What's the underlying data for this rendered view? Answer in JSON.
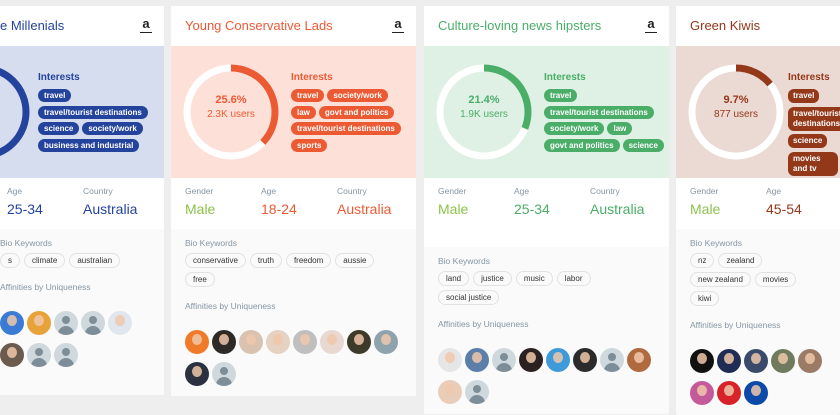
{
  "labels": {
    "interests": "Interests",
    "gender": "Gender",
    "age": "Age",
    "country": "Country",
    "bio_keywords": "Bio Keywords",
    "affinities": "Affinities by Uniqueness"
  },
  "cards": [
    {
      "title": "e Millenials",
      "accent": "#24439c",
      "panel": "#d6ddef",
      "percent": null,
      "users": "",
      "gender": "",
      "age": "25-34",
      "country": "Australia",
      "interests": [
        "travel",
        "travel/tourist destinations",
        "science",
        "society/work",
        "business and industrial"
      ],
      "keywords": [
        "s",
        "climate",
        "australian"
      ],
      "avatars": [
        "#3a7bd5",
        "#e8a23a",
        "ph",
        "ph",
        "#dfe6ee",
        "#6b5a4e",
        "ph",
        "ph"
      ]
    },
    {
      "title": "Young Conservative Lads",
      "accent": "#ec5a34",
      "panel": "#fde0d8",
      "percent": 25.6,
      "percent_label": "25.6%",
      "users": "2.3K users",
      "gender": "Male",
      "age": "18-24",
      "country": "Australia",
      "interests": [
        "travel",
        "society/work",
        "law",
        "govt and politics",
        "travel/tourist destinations",
        "sports"
      ],
      "keywords": [
        "conservative",
        "truth",
        "freedom",
        "aussie",
        "free"
      ],
      "avatars": [
        "#f07a2a",
        "#2e2a28",
        "#d9c2b0",
        "#e6d2c2",
        "#bfbfbf",
        "#e8d8d2",
        "#3d3a2a",
        "#8ea3ad",
        "#2c3140",
        "ph"
      ]
    },
    {
      "title": "Culture-loving news hipsters",
      "accent": "#4aae68",
      "panel": "#dff0e4",
      "percent": 21.4,
      "percent_label": "21.4%",
      "users": "1.9K users",
      "gender": "Male",
      "age": "25-34",
      "country": "Australia",
      "interests": [
        "travel",
        "travel/tourist destinations",
        "society/work",
        "law",
        "govt and politics",
        "science"
      ],
      "keywords": [
        "land",
        "justice",
        "music",
        "labor",
        "social justice"
      ],
      "avatars": [
        "#e6e6e6",
        "#5b7fa8",
        "ph",
        "#2a2220",
        "#3e9ad8",
        "#2b2b2b",
        "ph",
        "#b06a40",
        "#e9cdb8",
        "ph"
      ]
    },
    {
      "title": "Green Kiwis",
      "accent": "#94381a",
      "panel": "#ebd9d3",
      "percent": 9.7,
      "percent_label": "9.7%",
      "users": "877 users",
      "gender": "Male",
      "age": "45-54",
      "country": "",
      "interests": [
        "travel",
        "travel/tourist destinations",
        "science",
        "movies and tv"
      ],
      "keywords": [
        "nz",
        "zealand",
        "new zealand",
        "movies",
        "kiwi"
      ],
      "avatars": [
        "#111111",
        "#1f2d55",
        "#3a4a6a",
        "#6f7a5e",
        "#9b7a66",
        "#c45a9a",
        "#d8232a",
        "#0b4aa8"
      ]
    }
  ],
  "colors": {
    "gender": "#8bc34a",
    "page_bg": "#eeeeee"
  }
}
